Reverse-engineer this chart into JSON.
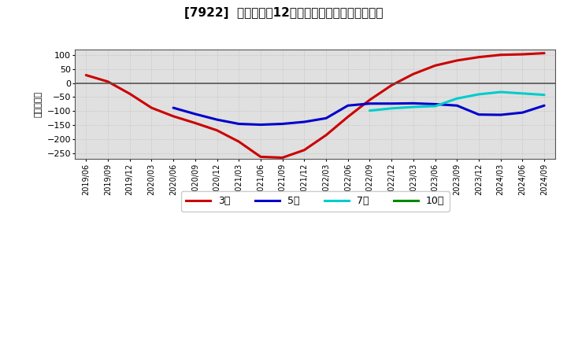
{
  "title": "[7922]  当期純利益12か月移動合計の平均値の推移",
  "ylabel": "（百万円）",
  "ylim": [
    -270,
    120
  ],
  "yticks": [
    -250,
    -200,
    -150,
    -100,
    -50,
    0,
    50,
    100
  ],
  "background_color": "#ffffff",
  "plot_bg_color": "#e0e0e0",
  "series": {
    "3年": {
      "color": "#cc0000",
      "x": [
        0,
        1,
        2,
        3,
        4,
        5,
        6,
        7,
        8,
        9,
        10,
        11,
        12,
        13,
        14,
        15,
        16,
        17,
        18,
        19,
        20,
        21
      ],
      "values": [
        28,
        5,
        -38,
        -88,
        -118,
        -142,
        -168,
        -208,
        -262,
        -265,
        -238,
        -185,
        -120,
        -60,
        -8,
        32,
        62,
        80,
        92,
        100,
        102,
        106
      ]
    },
    "5年": {
      "color": "#0000cc",
      "x": [
        4,
        5,
        6,
        7,
        8,
        9,
        10,
        11,
        12,
        13,
        14,
        15,
        16,
        17,
        18,
        19,
        20,
        21
      ],
      "values": [
        -88,
        -110,
        -130,
        -145,
        -148,
        -145,
        -138,
        -125,
        -80,
        -73,
        -73,
        -72,
        -75,
        -80,
        -112,
        -113,
        -105,
        -80
      ]
    },
    "7年": {
      "color": "#00cccc",
      "x": [
        13,
        14,
        15,
        16,
        17,
        18,
        19,
        20,
        21
      ],
      "values": [
        -98,
        -90,
        -85,
        -82,
        -55,
        -40,
        -32,
        -37,
        -42
      ]
    },
    "10年": {
      "color": "#008800",
      "x": [],
      "values": []
    }
  },
  "xtick_labels": [
    "2019/06",
    "2019/09",
    "2019/12",
    "2020/03",
    "2020/06",
    "2020/09",
    "2020/12",
    "2021/03",
    "2021/06",
    "2021/09",
    "2021/12",
    "2022/03",
    "2022/06",
    "2022/09",
    "2022/12",
    "2023/03",
    "2023/06",
    "2023/09",
    "2023/12",
    "2024/03",
    "2024/06",
    "2024/09"
  ],
  "legend_labels": [
    "3年",
    "5年",
    "7年",
    "10年"
  ],
  "legend_colors": [
    "#cc0000",
    "#0000cc",
    "#00cccc",
    "#008800"
  ]
}
